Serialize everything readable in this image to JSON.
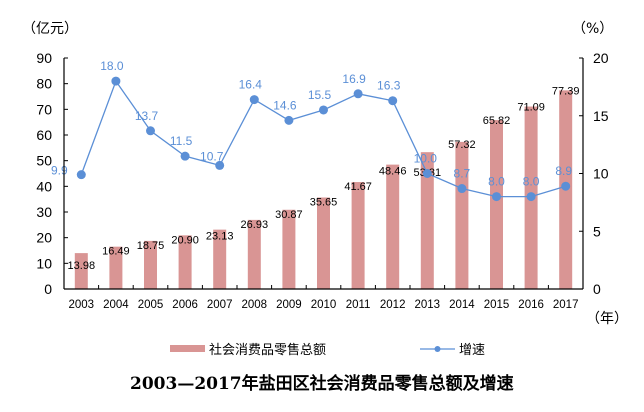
{
  "chart_data": {
    "type": "bar+line",
    "title": "2003—2017年盐田区社会消费品零售总额及增速",
    "categories": [
      "2003",
      "2004",
      "2005",
      "2006",
      "2007",
      "2008",
      "2009",
      "2010",
      "2011",
      "2012",
      "2013",
      "2014",
      "2015",
      "2016",
      "2017"
    ],
    "series": [
      {
        "name": "社会消费品零售总额",
        "type": "bar",
        "axis": "left",
        "color": "#d99594",
        "values": [
          13.98,
          16.49,
          18.75,
          20.9,
          23.13,
          26.93,
          30.87,
          35.65,
          41.67,
          48.46,
          53.31,
          57.32,
          65.82,
          71.09,
          77.39
        ],
        "labels": [
          "13.98",
          "16.49",
          "18.75",
          "20.90",
          "23.13",
          "26.93",
          "30.87",
          "35.65",
          "41.67",
          "48.46",
          "53.31",
          "57.32",
          "65.82",
          "71.09",
          "77.39"
        ]
      },
      {
        "name": "增速",
        "type": "line",
        "axis": "right",
        "color": "#5b8fd6",
        "values": [
          9.9,
          18.0,
          13.7,
          11.5,
          10.7,
          16.4,
          14.6,
          15.5,
          16.9,
          16.3,
          10.0,
          8.7,
          8.0,
          8.0,
          8.9
        ],
        "labels": [
          "9.9",
          "18.0",
          "13.7",
          "11.5",
          "10.7",
          "16.4",
          "14.6",
          "15.5",
          "16.9",
          "16.3",
          "10.0",
          "8.7",
          "8.0",
          "8.0",
          "8.9"
        ]
      }
    ],
    "y_left": {
      "label": "（亿元）",
      "range": [
        0,
        90
      ],
      "ticks": [
        "0",
        "10",
        "20",
        "30",
        "40",
        "50",
        "60",
        "70",
        "80",
        "90"
      ]
    },
    "y_right": {
      "label": "（%）",
      "range": [
        0,
        20
      ],
      "ticks": [
        "0",
        "5",
        "10",
        "15",
        "20"
      ]
    },
    "xlabel": "（年）",
    "grid": false,
    "legend": {
      "position": "bottom",
      "items": [
        "社会消费品零售总额",
        "增速"
      ]
    }
  }
}
